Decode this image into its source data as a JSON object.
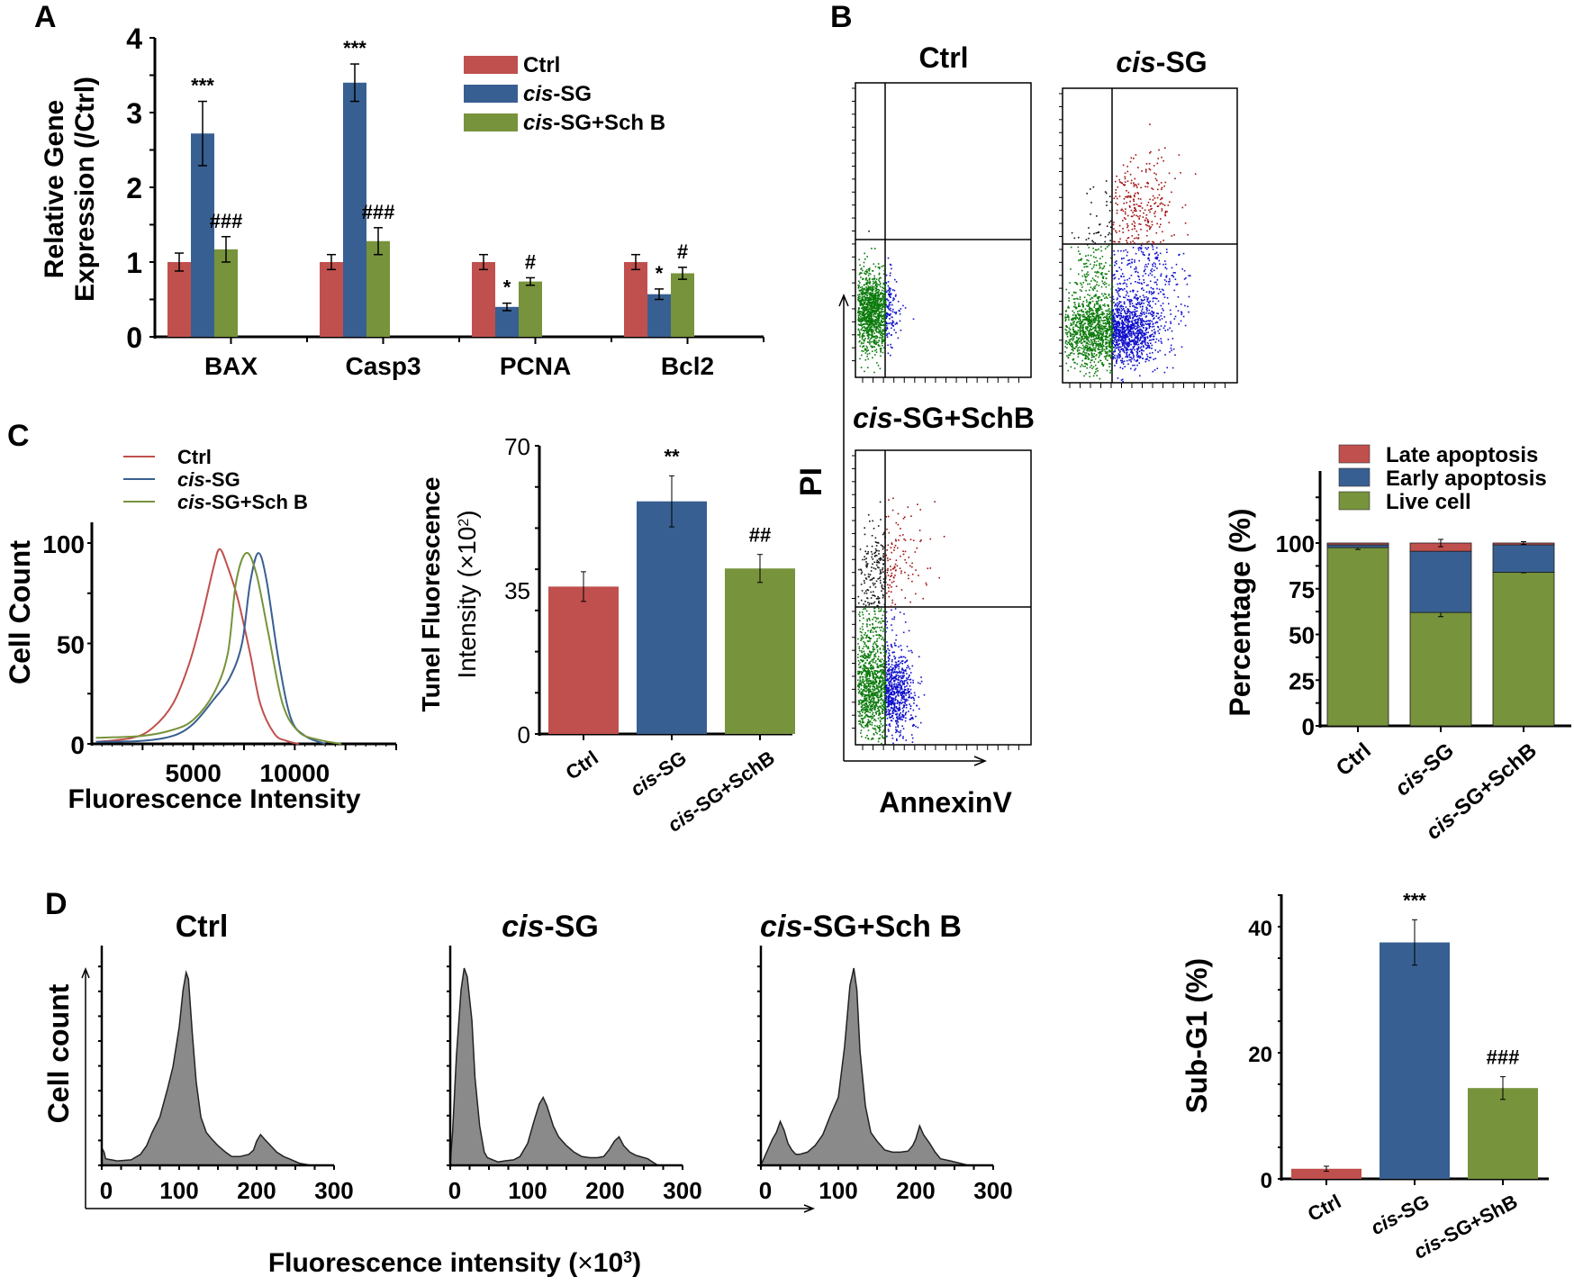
{
  "colors": {
    "ctrl": "#c0504d",
    "cis_sg": "#385f91",
    "cis_sg_schb": "#77933c",
    "hist_fill": "#8a8a8a",
    "dot_green": "#0a7a0a",
    "dot_blue": "#1010cc",
    "dot_red": "#a01010",
    "dot_black": "#111111"
  },
  "panel_labels": [
    "A",
    "B",
    "C",
    "D"
  ],
  "chart_data": [
    {
      "id": "A",
      "type": "bar",
      "title": "",
      "ylabel_line1": "Relative Gene",
      "ylabel_line2": "Expression (/Ctrl)",
      "xlabel": "",
      "ylim": [
        0,
        4
      ],
      "yticks": [
        0,
        1,
        2,
        3,
        4
      ],
      "categories": [
        "BAX",
        "Casp3",
        "PCNA",
        "Bcl2"
      ],
      "legend_placement": "top-right",
      "series": [
        {
          "name": "Ctrl",
          "name_italic": "",
          "name_rest": "Ctrl",
          "values": [
            1.0,
            1.0,
            1.0,
            1.0
          ],
          "errors": [
            0.12,
            0.1,
            0.1,
            0.1
          ],
          "annotations": [
            "",
            "",
            "",
            ""
          ]
        },
        {
          "name": "cis-SG",
          "name_italic": "cis",
          "name_rest": "-SG",
          "values": [
            2.72,
            3.4,
            0.4,
            0.57
          ],
          "errors": [
            0.43,
            0.25,
            0.05,
            0.07
          ],
          "annotations": [
            "***",
            "***",
            "*",
            "*"
          ]
        },
        {
          "name": "cis-SG+Sch B",
          "name_italic": "cis",
          "name_rest": "-SG+Sch B",
          "values": [
            1.17,
            1.28,
            0.74,
            0.85
          ],
          "errors": [
            0.17,
            0.18,
            0.05,
            0.08
          ],
          "annotations": [
            "###",
            "###",
            "#",
            "#"
          ]
        }
      ]
    },
    {
      "id": "B-flow",
      "type": "scatter",
      "xlabel": "AnnexinV",
      "ylabel": "PI",
      "plots": [
        {
          "title_italic": "",
          "title_rest": "Ctrl"
        },
        {
          "title_italic": "cis",
          "title_rest": "-SG"
        },
        {
          "title_italic": "cis",
          "title_rest": "-SG+SchB"
        }
      ]
    },
    {
      "id": "B-stacked",
      "type": "bar",
      "stacked": true,
      "ylabel": "Percentage (%)",
      "ylim": [
        0,
        125
      ],
      "yticks": [
        0,
        25,
        50,
        75,
        100
      ],
      "categories": [
        "Ctrl",
        "cis-SG",
        "cis-SG+SchB"
      ],
      "categories_italic": [
        "",
        "cis",
        "cis"
      ],
      "categories_rest": [
        "Ctrl",
        "-SG",
        "-SG+SchB"
      ],
      "legend_placement": "top-right",
      "series": [
        {
          "name": "Live cell",
          "values": [
            97.5,
            62,
            84
          ],
          "errors": [
            2,
            4.5,
            0.5
          ]
        },
        {
          "name": "Early apoptosis",
          "values": [
            1.5,
            33.5,
            15
          ],
          "errors": [
            0,
            0,
            0
          ]
        },
        {
          "name": "Late apoptosis",
          "values": [
            1,
            4.5,
            1
          ],
          "errors": [
            0,
            4,
            1.5
          ]
        }
      ],
      "legend": [
        "Late apoptosis",
        "Early apoptosis",
        "Live cell"
      ]
    },
    {
      "id": "C-hist",
      "type": "line",
      "xlabel": "Fluorescence Intensity",
      "ylabel": "Cell Count",
      "xlim": [
        0,
        15000
      ],
      "ylim": [
        0,
        110
      ],
      "xtick_labels": [
        "5000",
        "10000"
      ],
      "xtick_values": [
        5000,
        10000
      ],
      "yticks": [
        0,
        50,
        100
      ],
      "legend_placement": "top-left",
      "series": [
        {
          "name": "Ctrl",
          "name_italic": "",
          "name_rest": "Ctrl",
          "peak_x": 6300,
          "peak_y": 97,
          "x": [
            200,
            2000,
            3000,
            4000,
            4800,
            5400,
            6000,
            6300,
            6700,
            7200,
            7800,
            8300,
            9000,
            9600,
            10200
          ],
          "y": [
            1,
            3,
            8,
            20,
            40,
            62,
            88,
            97,
            88,
            72,
            45,
            20,
            5,
            1.5,
            0
          ]
        },
        {
          "name": "cis-SG",
          "name_italic": "cis",
          "name_rest": "-SG",
          "peak_x": 8200,
          "peak_y": 95,
          "x": [
            200,
            2500,
            4000,
            5000,
            6000,
            6800,
            7400,
            7800,
            8200,
            8600,
            9200,
            9800,
            10500,
            11500
          ],
          "y": [
            1,
            1.5,
            4,
            10,
            22,
            33,
            50,
            80,
            95,
            82,
            42,
            13,
            4,
            0
          ]
        },
        {
          "name": "cis-SG+Sch B",
          "name_italic": "cis",
          "name_rest": "-SG+Sch B",
          "peak_x": 7600,
          "peak_y": 95,
          "x": [
            200,
            2500,
            4000,
            5000,
            6000,
            6700,
            7100,
            7600,
            8100,
            8700,
            9400,
            10200,
            11200,
            12300
          ],
          "y": [
            3,
            4,
            7,
            12,
            25,
            45,
            80,
            95,
            85,
            55,
            20,
            6,
            2,
            0
          ]
        }
      ]
    },
    {
      "id": "C-bar",
      "type": "bar",
      "ylabel_line1": "Tunel Fluorescence",
      "ylabel_line2_pre": "Intensity (",
      "ylabel_line2_times": "×",
      "ylabel_line2_base": "10",
      "ylabel_line2_sup": "2",
      "ylabel_line2_post": ")",
      "ylim": [
        0,
        70
      ],
      "yticks": [
        0,
        35,
        70
      ],
      "categories": [
        "Ctrl",
        "cis-SG",
        "cis-SG+SchB"
      ],
      "categories_italic": [
        "",
        "cis",
        "cis"
      ],
      "categories_rest": [
        "Ctrl",
        "-SG",
        "-SG+SchB"
      ],
      "values": [
        35.8,
        56.5,
        40.2
      ],
      "errors": [
        3.6,
        6.2,
        3.4
      ],
      "annotations": [
        "",
        "**",
        "##"
      ]
    },
    {
      "id": "D-hist",
      "type": "area",
      "xlabel_pre": "Fluorescence intensity (",
      "xlabel_times": "×",
      "xlabel_base": "10",
      "xlabel_sup": "3",
      "xlabel_post": ")",
      "ylabel": "Cell count",
      "xlim": [
        0,
        300
      ],
      "xticks": [
        0,
        100,
        200,
        300
      ],
      "plots": [
        {
          "title_italic": "",
          "title_rest": "Ctrl",
          "x": [
            0,
            3,
            5,
            20,
            38,
            50,
            58,
            65,
            75,
            85,
            92,
            100,
            105,
            109,
            112,
            117,
            122,
            128,
            135,
            142,
            150,
            160,
            168,
            178,
            190,
            196,
            200,
            205,
            210,
            218,
            226,
            235,
            242,
            255,
            270
          ],
          "y": [
            8,
            6,
            3,
            2,
            2.5,
            5,
            9,
            15,
            22,
            35,
            45,
            63,
            80,
            88,
            85,
            60,
            38,
            22,
            15,
            12,
            9,
            6,
            4,
            4,
            5,
            7,
            11,
            14,
            12,
            9,
            6,
            4,
            3,
            1,
            0
          ]
        },
        {
          "title_italic": "cis",
          "title_rest": "-SG",
          "x": [
            0,
            3,
            8,
            14,
            18,
            22,
            28,
            32,
            38,
            44,
            48,
            55,
            62,
            70,
            82,
            90,
            95,
            100,
            108,
            115,
            120,
            125,
            133,
            140,
            150,
            160,
            170,
            180,
            190,
            198,
            205,
            212,
            218,
            224,
            232,
            240,
            255,
            268
          ],
          "y": [
            1,
            15,
            50,
            80,
            90,
            86,
            66,
            40,
            18,
            6,
            3.5,
            2.5,
            1.5,
            2,
            2.5,
            4,
            7,
            10,
            20,
            28,
            31,
            27,
            18,
            13,
            9,
            6,
            4,
            3.5,
            3.5,
            4,
            7,
            11,
            13,
            9,
            6,
            4.5,
            3,
            0
          ]
        },
        {
          "title_italic": "cis",
          "title_rest": "-SG+Sch B",
          "x": [
            0,
            5,
            10,
            15,
            20,
            25,
            30,
            35,
            40,
            45,
            50,
            60,
            70,
            80,
            90,
            100,
            108,
            115,
            120,
            124,
            128,
            135,
            142,
            150,
            160,
            170,
            180,
            190,
            196,
            200,
            205,
            210,
            218,
            225,
            232,
            245,
            268
          ],
          "y": [
            0,
            4,
            8,
            12,
            15,
            20,
            16,
            10,
            7,
            5,
            5,
            6,
            9,
            14,
            23,
            31,
            54,
            82,
            90,
            80,
            52,
            27,
            15,
            11,
            7,
            6,
            6,
            6.5,
            9,
            12,
            18,
            14,
            10,
            6,
            3,
            2,
            0
          ]
        }
      ]
    },
    {
      "id": "D-bar",
      "type": "bar",
      "ylabel": "Sub-G1 (%)",
      "ylim": [
        0,
        45
      ],
      "yticks": [
        0,
        20,
        40
      ],
      "categories": [
        "Ctrl",
        "cis-SG",
        "cis-SG+ShB"
      ],
      "categories_italic": [
        "",
        "cis",
        "cis"
      ],
      "categories_rest": [
        "Ctrl",
        "-SG",
        "-SG+ShB"
      ],
      "values": [
        1.6,
        37.5,
        14.4
      ],
      "errors": [
        0.4,
        3.6,
        1.8
      ],
      "annotations": [
        "",
        "***",
        "###"
      ]
    }
  ]
}
